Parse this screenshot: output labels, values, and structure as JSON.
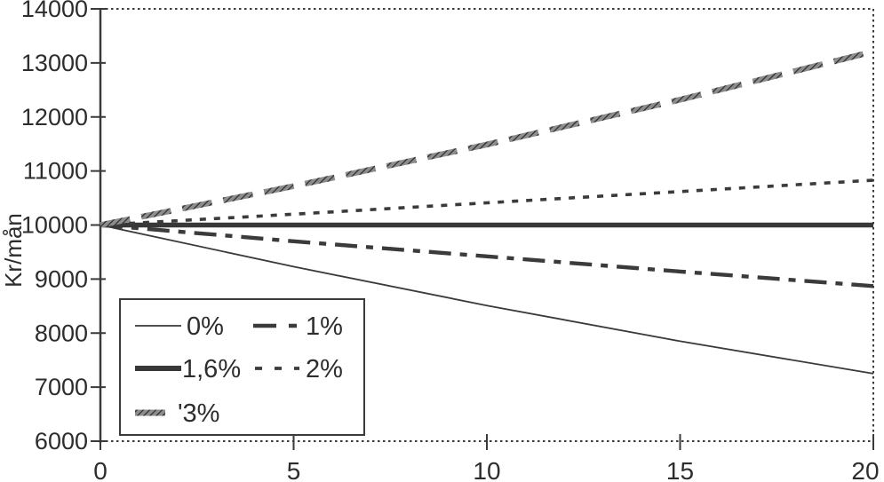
{
  "chart_data": {
    "type": "line",
    "title": "",
    "xlabel": "",
    "ylabel": "Kr/mån",
    "xlim": [
      0,
      20
    ],
    "ylim": [
      6000,
      14000
    ],
    "x_ticks": [
      0,
      5,
      10,
      15,
      20
    ],
    "y_ticks": [
      6000,
      7000,
      8000,
      9000,
      10000,
      11000,
      12000,
      13000,
      14000
    ],
    "grid": false,
    "frame": "top-bottom-right dotted, left solid axis",
    "legend_position": "lower-left box, 2 columns",
    "ink_color": "#3a3a3a",
    "background": "#ffffff",
    "x": [
      0,
      5,
      10,
      15,
      20
    ],
    "series": [
      {
        "name": "0%",
        "style": "thin-solid",
        "values": [
          10000,
          9230,
          8510,
          7850,
          7250
        ]
      },
      {
        "name": "1%",
        "style": "thick-dash-dot",
        "values": [
          10000,
          9700,
          9420,
          9140,
          8870
        ]
      },
      {
        "name": "1,6%",
        "style": "thick-solid",
        "values": [
          10000,
          10000,
          10000,
          10000,
          10000
        ]
      },
      {
        "name": "2%",
        "style": "dotted",
        "values": [
          10000,
          10200,
          10410,
          10620,
          10830
        ]
      },
      {
        "name": "'3%",
        "style": "textured-dash",
        "values": [
          10000,
          10720,
          11490,
          12320,
          13210
        ]
      }
    ]
  },
  "legend": {
    "items": [
      {
        "label": "0%"
      },
      {
        "label": "1%"
      },
      {
        "label": "1,6%"
      },
      {
        "label": "2%"
      },
      {
        "label": "'3%"
      }
    ]
  }
}
